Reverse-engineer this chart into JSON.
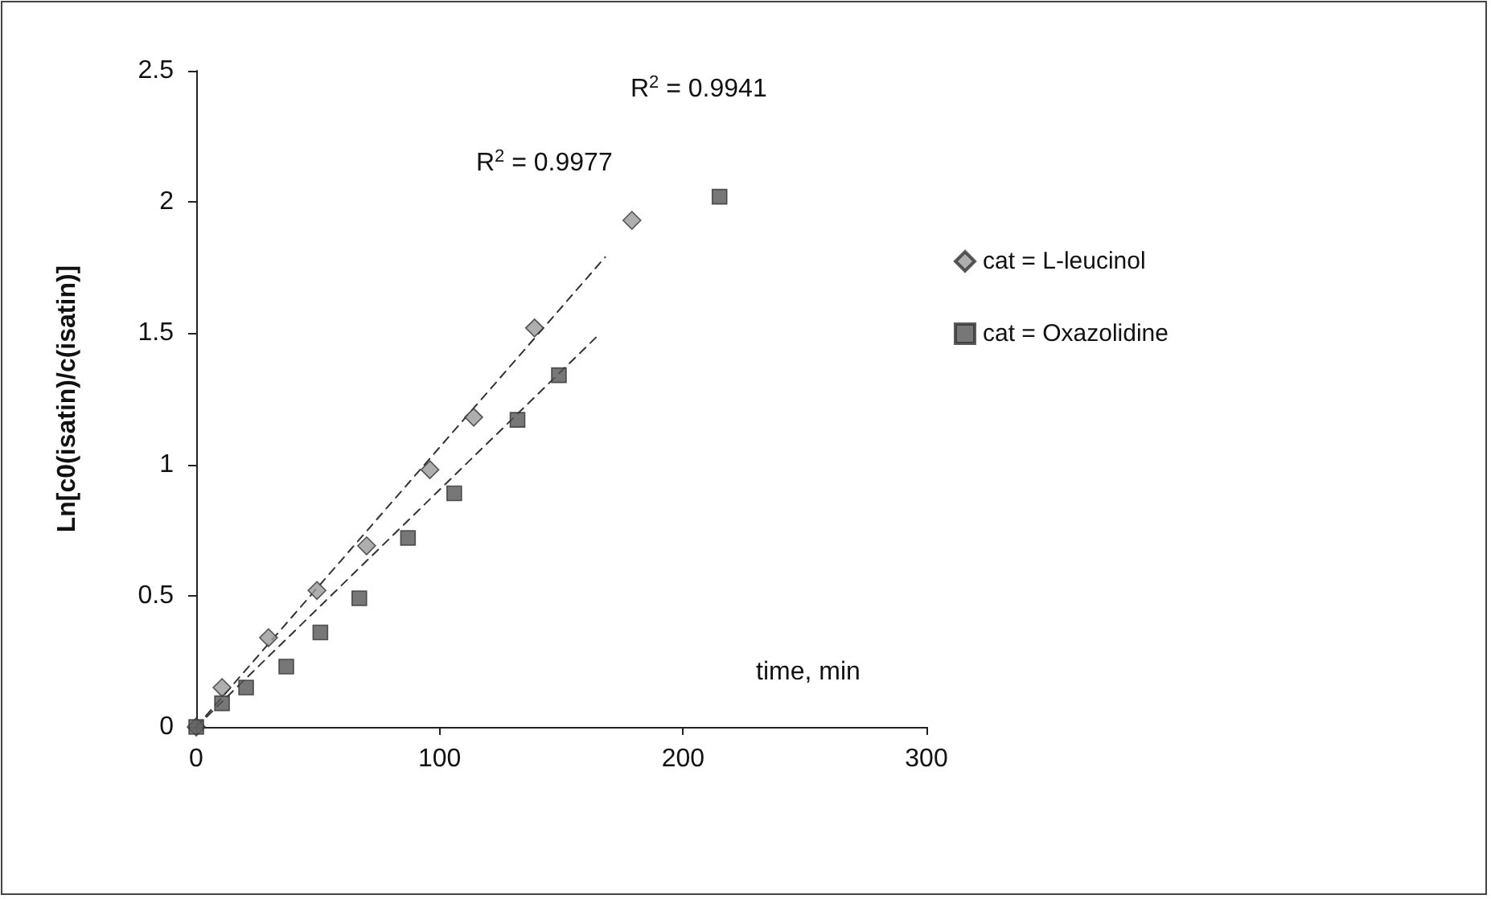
{
  "chart_data": {
    "type": "scatter",
    "xlabel": "time, min",
    "ylabel": "Ln[c0(isatin)/c(isatin)]",
    "annotations": [
      "R$^{2}$ = 0.9977",
      "R$^{2}$ = 0.9941"
    ],
    "xlim": [
      0,
      300
    ],
    "xticks": [
      0,
      100,
      200,
      300
    ],
    "ylim": [
      0,
      2.5
    ],
    "yticks": [
      0,
      0.5,
      1,
      1.5,
      2,
      2.5
    ],
    "grid": false,
    "legend": "right",
    "series": [
      {
        "name": "cat = L-leucinol",
        "marker": "diamond",
        "color": "#9a9a9a",
        "x": [
          0,
          10.6,
          29.7,
          49.6,
          70,
          96,
          114,
          139,
          179
        ],
        "values": [
          0,
          0.15,
          0.34,
          0.52,
          0.69,
          0.98,
          1.18,
          1.52,
          1.93
        ]
      },
      {
        "name": "cat = Oxazolidine",
        "marker": "square",
        "color": "#555555",
        "x": [
          0,
          10.6,
          20.5,
          37,
          51,
          67,
          87,
          106,
          132,
          149,
          215
        ],
        "values": [
          0,
          0.09,
          0.15,
          0.23,
          0.36,
          0.49,
          0.72,
          0.89,
          1.17,
          1.34,
          2.02
        ]
      },
      {
        "type": "line",
        "marker": "none",
        "line_style": "dashed",
        "color": "#333333",
        "x": [
          0,
          168
        ],
        "values": [
          0,
          1.79
        ]
      },
      {
        "type": "line",
        "marker": "none",
        "line_style": "dashed",
        "color": "#333333",
        "x": [
          0,
          166
        ],
        "values": [
          0,
          1.5
        ]
      }
    ]
  }
}
